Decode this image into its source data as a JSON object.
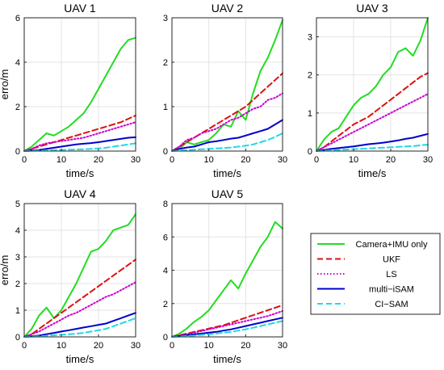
{
  "legend": {
    "entries": [
      {
        "name": "Camera+IMU only",
        "color": "#22dd22",
        "dash": "solid",
        "width": 2
      },
      {
        "name": "UKF",
        "color": "#dd1111",
        "dash": "dashed",
        "width": 2
      },
      {
        "name": "LS",
        "color": "#cc00cc",
        "dash": "dotted",
        "width": 2
      },
      {
        "name": "multi−iSAM",
        "color": "#0000cc",
        "dash": "solid",
        "width": 2
      },
      {
        "name": "CI−SAM",
        "color": "#22d8e8",
        "dash": "dashed",
        "width": 2
      }
    ],
    "placement": "bottom-right"
  },
  "chart_data": [
    {
      "type": "line",
      "title": "UAV 1",
      "xlabel": "time/s",
      "ylabel": "erro/m",
      "xlim": [
        0,
        30
      ],
      "ylim": [
        0,
        6
      ],
      "xticks": [
        0,
        10,
        20,
        30
      ],
      "yticks": [
        0,
        2,
        4,
        6
      ],
      "grid": true,
      "x": [
        0,
        2,
        4,
        6,
        8,
        10,
        12,
        14,
        16,
        18,
        20,
        22,
        24,
        26,
        28,
        30
      ],
      "series": [
        {
          "name": "Camera+IMU only",
          "values": [
            0,
            0.2,
            0.5,
            0.8,
            0.7,
            0.9,
            1.1,
            1.4,
            1.7,
            2.2,
            2.8,
            3.4,
            4.0,
            4.6,
            5.0,
            5.1
          ]
        },
        {
          "name": "UKF",
          "values": [
            0,
            0.1,
            0.2,
            0.3,
            0.4,
            0.5,
            0.6,
            0.7,
            0.8,
            0.9,
            1.0,
            1.1,
            1.2,
            1.3,
            1.45,
            1.6
          ]
        },
        {
          "name": "LS",
          "values": [
            0,
            0.1,
            0.25,
            0.35,
            0.4,
            0.45,
            0.5,
            0.55,
            0.6,
            0.7,
            0.8,
            0.9,
            1.0,
            1.1,
            1.2,
            1.3
          ]
        },
        {
          "name": "multi−iSAM",
          "values": [
            0,
            0.02,
            0.05,
            0.1,
            0.15,
            0.2,
            0.25,
            0.3,
            0.33,
            0.36,
            0.4,
            0.45,
            0.5,
            0.55,
            0.6,
            0.62
          ]
        },
        {
          "name": "CI−SAM",
          "values": [
            0,
            0.01,
            0.02,
            0.03,
            0.04,
            0.05,
            0.06,
            0.07,
            0.08,
            0.1,
            0.12,
            0.15,
            0.2,
            0.25,
            0.3,
            0.35
          ]
        }
      ]
    },
    {
      "type": "line",
      "title": "UAV 2",
      "xlabel": "time/s",
      "ylabel": "",
      "xlim": [
        0,
        30
      ],
      "ylim": [
        0,
        3
      ],
      "xticks": [
        0,
        10,
        20,
        30
      ],
      "yticks": [
        0,
        1,
        2,
        3
      ],
      "grid": true,
      "x": [
        0,
        2,
        4,
        6,
        8,
        10,
        12,
        14,
        16,
        18,
        20,
        22,
        24,
        26,
        28,
        30
      ],
      "series": [
        {
          "name": "Camera+IMU only",
          "values": [
            0,
            0.05,
            0.2,
            0.15,
            0.2,
            0.25,
            0.4,
            0.6,
            0.55,
            0.9,
            0.7,
            1.3,
            1.8,
            2.1,
            2.5,
            2.95
          ]
        },
        {
          "name": "UKF",
          "values": [
            0,
            0.1,
            0.2,
            0.3,
            0.4,
            0.5,
            0.6,
            0.7,
            0.8,
            0.9,
            1.0,
            1.15,
            1.3,
            1.45,
            1.6,
            1.75
          ]
        },
        {
          "name": "LS",
          "values": [
            0,
            0.1,
            0.25,
            0.3,
            0.4,
            0.45,
            0.5,
            0.6,
            0.7,
            0.75,
            0.85,
            0.95,
            1.0,
            1.15,
            1.2,
            1.3
          ]
        },
        {
          "name": "multi−iSAM",
          "values": [
            0,
            0.05,
            0.08,
            0.1,
            0.15,
            0.2,
            0.22,
            0.25,
            0.28,
            0.3,
            0.35,
            0.4,
            0.45,
            0.5,
            0.6,
            0.7
          ]
        },
        {
          "name": "CI−SAM",
          "values": [
            0,
            0.01,
            0.02,
            0.03,
            0.04,
            0.05,
            0.06,
            0.07,
            0.08,
            0.1,
            0.12,
            0.15,
            0.2,
            0.25,
            0.32,
            0.4
          ]
        }
      ]
    },
    {
      "type": "line",
      "title": "UAV 3",
      "xlabel": "time/s",
      "ylabel": "",
      "xlim": [
        0,
        30
      ],
      "ylim": [
        0,
        3.5
      ],
      "xticks": [
        0,
        10,
        20,
        30
      ],
      "yticks": [
        0,
        1,
        2,
        3
      ],
      "grid": true,
      "x": [
        0,
        2,
        4,
        6,
        8,
        10,
        12,
        14,
        16,
        18,
        20,
        22,
        24,
        26,
        28,
        30
      ],
      "series": [
        {
          "name": "Camera+IMU only",
          "values": [
            0,
            0.3,
            0.5,
            0.6,
            0.9,
            1.2,
            1.4,
            1.5,
            1.7,
            2.0,
            2.2,
            2.6,
            2.7,
            2.5,
            2.9,
            3.5
          ]
        },
        {
          "name": "UKF",
          "values": [
            0,
            0.1,
            0.25,
            0.4,
            0.55,
            0.7,
            0.8,
            0.9,
            1.05,
            1.2,
            1.35,
            1.5,
            1.65,
            1.8,
            1.95,
            2.05
          ]
        },
        {
          "name": "LS",
          "values": [
            0,
            0.1,
            0.2,
            0.3,
            0.4,
            0.5,
            0.6,
            0.7,
            0.8,
            0.9,
            1.0,
            1.1,
            1.2,
            1.3,
            1.4,
            1.5
          ]
        },
        {
          "name": "multi−iSAM",
          "values": [
            0,
            0.03,
            0.06,
            0.08,
            0.1,
            0.12,
            0.15,
            0.18,
            0.2,
            0.22,
            0.25,
            0.28,
            0.32,
            0.35,
            0.4,
            0.45
          ]
        },
        {
          "name": "CI−SAM",
          "values": [
            0,
            0.01,
            0.02,
            0.03,
            0.04,
            0.05,
            0.06,
            0.07,
            0.08,
            0.09,
            0.1,
            0.11,
            0.12,
            0.13,
            0.15,
            0.17
          ]
        }
      ]
    },
    {
      "type": "line",
      "title": "UAV 4",
      "xlabel": "time/s",
      "ylabel": "erro/m",
      "xlim": [
        0,
        30
      ],
      "ylim": [
        0,
        5
      ],
      "xticks": [
        0,
        10,
        20,
        30
      ],
      "yticks": [
        0,
        1,
        2,
        3,
        4,
        5
      ],
      "grid": true,
      "x": [
        0,
        2,
        4,
        6,
        8,
        10,
        12,
        14,
        16,
        18,
        20,
        22,
        24,
        26,
        28,
        30
      ],
      "series": [
        {
          "name": "Camera+IMU only",
          "values": [
            0,
            0.3,
            0.8,
            1.1,
            0.7,
            1.0,
            1.5,
            2.0,
            2.6,
            3.2,
            3.3,
            3.6,
            4.0,
            4.1,
            4.2,
            4.6
          ]
        },
        {
          "name": "UKF",
          "values": [
            0,
            0.1,
            0.3,
            0.5,
            0.7,
            0.9,
            1.1,
            1.3,
            1.5,
            1.7,
            1.9,
            2.1,
            2.3,
            2.5,
            2.7,
            2.9
          ]
        },
        {
          "name": "LS",
          "values": [
            0,
            0.1,
            0.2,
            0.35,
            0.5,
            0.65,
            0.8,
            0.9,
            1.05,
            1.2,
            1.35,
            1.5,
            1.6,
            1.75,
            1.9,
            2.05
          ]
        },
        {
          "name": "multi−iSAM",
          "values": [
            0,
            0.02,
            0.05,
            0.1,
            0.15,
            0.2,
            0.25,
            0.3,
            0.35,
            0.4,
            0.45,
            0.5,
            0.6,
            0.7,
            0.8,
            0.9
          ]
        },
        {
          "name": "CI−SAM",
          "values": [
            0,
            0.01,
            0.02,
            0.04,
            0.06,
            0.08,
            0.1,
            0.12,
            0.15,
            0.2,
            0.25,
            0.3,
            0.4,
            0.5,
            0.6,
            0.7
          ]
        }
      ]
    },
    {
      "type": "line",
      "title": "UAV 5",
      "xlabel": "time/s",
      "ylabel": "",
      "xlim": [
        0,
        30
      ],
      "ylim": [
        0,
        8
      ],
      "xticks": [
        0,
        10,
        20,
        30
      ],
      "yticks": [
        0,
        2,
        4,
        6,
        8
      ],
      "grid": true,
      "x": [
        0,
        2,
        4,
        6,
        8,
        10,
        12,
        14,
        16,
        18,
        20,
        22,
        24,
        26,
        28,
        30
      ],
      "series": [
        {
          "name": "Camera+IMU only",
          "values": [
            0,
            0.2,
            0.5,
            0.9,
            1.2,
            1.6,
            2.2,
            2.8,
            3.4,
            2.9,
            3.8,
            4.6,
            5.4,
            6.0,
            6.9,
            6.5
          ]
        },
        {
          "name": "UKF",
          "values": [
            0,
            0.1,
            0.2,
            0.3,
            0.4,
            0.5,
            0.6,
            0.7,
            0.85,
            1.0,
            1.15,
            1.3,
            1.45,
            1.6,
            1.75,
            1.9
          ]
        },
        {
          "name": "LS",
          "values": [
            0,
            0.08,
            0.15,
            0.25,
            0.35,
            0.45,
            0.55,
            0.65,
            0.75,
            0.85,
            0.95,
            1.05,
            1.15,
            1.25,
            1.4,
            1.55
          ]
        },
        {
          "name": "multi−iSAM",
          "values": [
            0,
            0.05,
            0.1,
            0.15,
            0.2,
            0.25,
            0.3,
            0.38,
            0.45,
            0.55,
            0.65,
            0.75,
            0.85,
            0.95,
            1.05,
            1.15
          ]
        },
        {
          "name": "CI−SAM",
          "values": [
            0,
            0.02,
            0.05,
            0.08,
            0.12,
            0.16,
            0.2,
            0.25,
            0.3,
            0.38,
            0.45,
            0.55,
            0.65,
            0.75,
            0.85,
            0.95
          ]
        }
      ]
    }
  ]
}
